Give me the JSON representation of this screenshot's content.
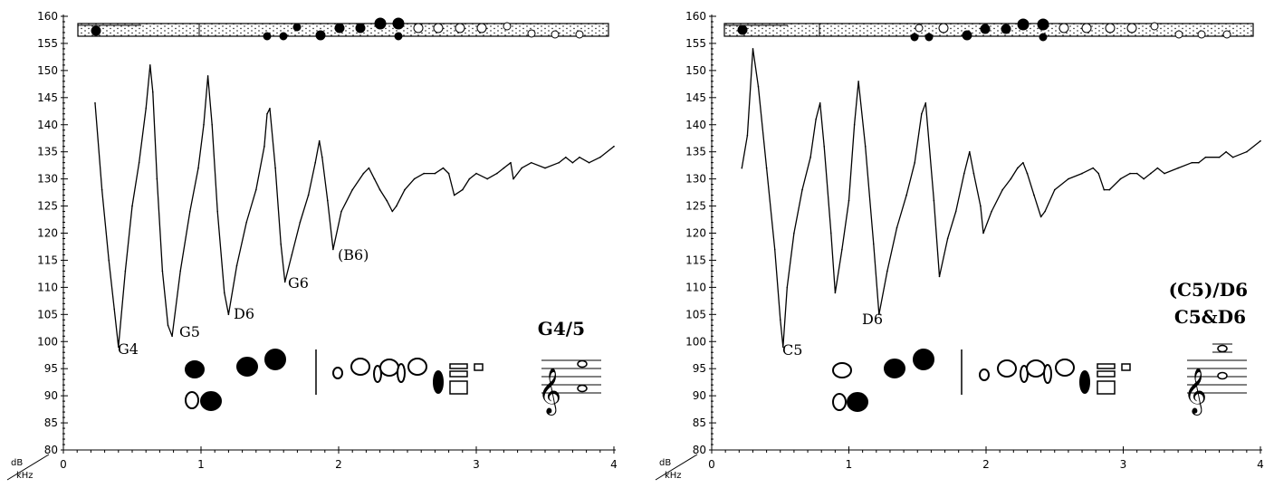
{
  "chart_data": [
    {
      "type": "line",
      "xlabel": "kHz",
      "ylabel": "dB",
      "xlim": [
        0,
        4
      ],
      "ylim": [
        80,
        160
      ],
      "x_ticks": [
        "0",
        "1",
        "2",
        "3",
        "4"
      ],
      "y_ticks": [
        "80",
        "85",
        "90",
        "95",
        "100",
        "105",
        "110",
        "115",
        "120",
        "125",
        "130",
        "135",
        "140",
        "145",
        "150",
        "155",
        "160"
      ],
      "grid": false,
      "title": "G4/5",
      "series": [
        {
          "x": [
            0.23,
            0.28,
            0.33,
            0.37,
            0.4,
            0.45,
            0.5,
            0.55,
            0.6,
            0.63,
            0.65,
            0.68,
            0.72,
            0.76,
            0.79,
            0.85,
            0.92,
            0.98,
            1.02,
            1.05,
            1.08,
            1.12,
            1.17,
            1.2,
            1.26,
            1.33,
            1.4,
            1.46,
            1.48,
            1.5,
            1.54,
            1.58,
            1.61,
            1.66,
            1.72,
            1.78,
            1.83,
            1.86,
            1.88,
            1.92,
            1.96,
            2.02,
            2.1,
            2.18,
            2.22,
            2.26,
            2.3,
            2.35,
            2.39,
            2.42,
            2.48,
            2.55,
            2.62,
            2.7,
            2.76,
            2.8,
            2.84,
            2.9,
            2.95,
            3.0,
            3.08,
            3.15,
            3.2,
            3.25,
            3.27,
            3.33,
            3.4,
            3.5,
            3.6,
            3.65,
            3.7,
            3.75,
            3.82,
            3.9,
            4.0
          ],
          "values": [
            144,
            128,
            115,
            106,
            99,
            113,
            125,
            133,
            143,
            151,
            146,
            130,
            113,
            103,
            101,
            113,
            124,
            132,
            140,
            149,
            140,
            124,
            109,
            105,
            114,
            122,
            128,
            136,
            142,
            143,
            132,
            118,
            111,
            116,
            122,
            127,
            133,
            137,
            134,
            126,
            117,
            124,
            128,
            131,
            132,
            130,
            128,
            126,
            124,
            125,
            128,
            130,
            131,
            131,
            132,
            131,
            127,
            128,
            130,
            131,
            130,
            131,
            132,
            133,
            130,
            132,
            133,
            132,
            133,
            134,
            133,
            134,
            133,
            134,
            136
          ]
        }
      ],
      "annotations": [
        "G4",
        "G5",
        "D6",
        "G6",
        "(B6)"
      ]
    },
    {
      "type": "line",
      "xlabel": "kHz",
      "ylabel": "dB",
      "xlim": [
        0,
        4
      ],
      "ylim": [
        80,
        160
      ],
      "x_ticks": [
        "0",
        "1",
        "2",
        "3",
        "4"
      ],
      "y_ticks": [
        "80",
        "85",
        "90",
        "95",
        "100",
        "105",
        "110",
        "115",
        "120",
        "125",
        "130",
        "135",
        "140",
        "145",
        "150",
        "155",
        "160"
      ],
      "grid": false,
      "title": "(C5)/D6",
      "subtitle": "C5&D6",
      "series": [
        {
          "x": [
            0.22,
            0.26,
            0.3,
            0.34,
            0.4,
            0.46,
            0.5,
            0.52,
            0.55,
            0.6,
            0.66,
            0.72,
            0.76,
            0.79,
            0.82,
            0.87,
            0.9,
            0.95,
            1.0,
            1.04,
            1.07,
            1.12,
            1.18,
            1.22,
            1.28,
            1.35,
            1.42,
            1.48,
            1.53,
            1.56,
            1.62,
            1.66,
            1.72,
            1.78,
            1.84,
            1.88,
            1.91,
            1.96,
            1.98,
            2.04,
            2.12,
            2.18,
            2.23,
            2.27,
            2.3,
            2.35,
            2.4,
            2.43,
            2.5,
            2.6,
            2.7,
            2.78,
            2.82,
            2.86,
            2.9,
            2.98,
            3.05,
            3.1,
            3.15,
            3.2,
            3.25,
            3.3,
            3.4,
            3.5,
            3.55,
            3.6,
            3.7,
            3.75,
            3.8,
            3.9,
            4.0
          ],
          "values": [
            132,
            138,
            154,
            147,
            132,
            117,
            104,
            99,
            110,
            120,
            128,
            134,
            141,
            144,
            136,
            120,
            109,
            117,
            126,
            140,
            148,
            136,
            118,
            105,
            113,
            121,
            127,
            133,
            142,
            144,
            126,
            112,
            119,
            124,
            131,
            135,
            131,
            125,
            120,
            124,
            128,
            130,
            132,
            133,
            131,
            127,
            123,
            124,
            128,
            130,
            131,
            132,
            131,
            128,
            128,
            130,
            131,
            131,
            130,
            131,
            132,
            131,
            132,
            133,
            133,
            134,
            134,
            135,
            134,
            135,
            137
          ]
        }
      ],
      "annotations": [
        "C5",
        "D6"
      ]
    }
  ]
}
